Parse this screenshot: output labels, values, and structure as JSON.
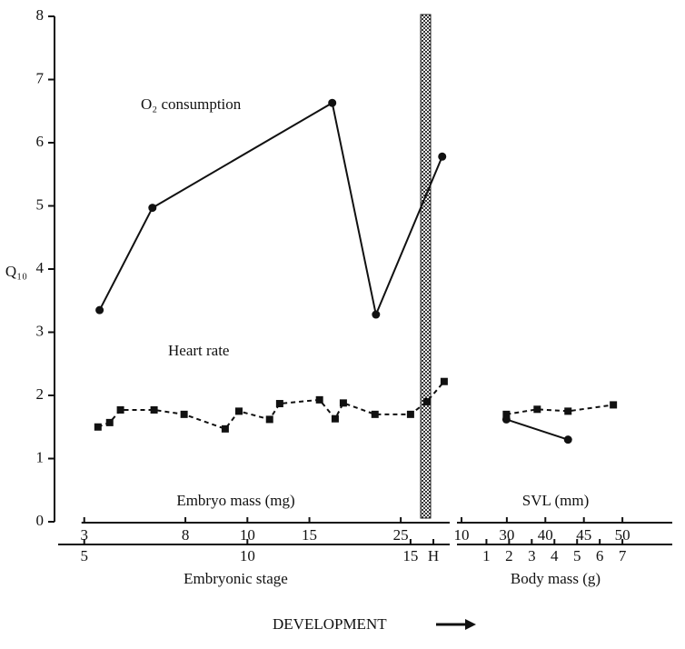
{
  "chart_data": {
    "type": "line",
    "ylabel": "Q₁₀",
    "ylim": [
      0,
      8
    ],
    "yticks": [
      0,
      1,
      2,
      3,
      4,
      5,
      6,
      7,
      8
    ],
    "annotations": [
      "O₂ consumption",
      "Heart rate"
    ],
    "footer": "DEVELOPMENT",
    "panels": [
      {
        "xlim": [
          4.2,
          16.2
        ],
        "axes": [
          {
            "label": "Embryo mass (mg)",
            "ticks": [
              {
                "value": 3,
                "at": 5
              },
              {
                "value": 8,
                "at": 8.1
              },
              {
                "value": 10,
                "at": 10
              },
              {
                "value": 15,
                "at": 11.9
              },
              {
                "value": 25,
                "at": 14.7
              }
            ]
          },
          {
            "label": "Embryonic stage",
            "ticks": [
              5,
              10,
              15,
              {
                "value": 15.7,
                "label": "H"
              }
            ]
          }
        ],
        "series": [
          {
            "name": "O₂ consumption",
            "marker": "circle",
            "dash": false,
            "color": "#111",
            "x": [
              5.47,
              7.09,
              12.6,
              13.94,
              15.97
            ],
            "values": [
              3.35,
              4.97,
              6.63,
              3.28,
              5.78
            ]
          },
          {
            "name": "Heart rate",
            "marker": "square",
            "dash": true,
            "color": "#111",
            "x": [
              5.42,
              5.78,
              6.11,
              7.14,
              8.06,
              9.32,
              9.74,
              10.68,
              10.99,
              12.21,
              12.69,
              12.94,
              13.91,
              15.0,
              15.5,
              16.03
            ],
            "values": [
              1.5,
              1.57,
              1.77,
              1.77,
              1.7,
              1.47,
              1.75,
              1.62,
              1.87,
              1.93,
              1.63,
              1.88,
              1.7,
              1.7,
              1.9,
              2.22
            ]
          }
        ]
      },
      {
        "xlim": [
          -0.3,
          9.2
        ],
        "axes": [
          {
            "label": "SVL (mm)",
            "ticks": [
              {
                "value": 10,
                "at": -0.1
              },
              {
                "value": 30,
                "at": 1.9
              },
              {
                "value": 40,
                "at": 3.6
              },
              {
                "value": 45,
                "at": 5.3
              },
              {
                "value": 50,
                "at": 7.0
              }
            ]
          },
          {
            "label": "Body mass (g)",
            "ticks": [
              1,
              2,
              3,
              4,
              5,
              6,
              7
            ]
          }
        ],
        "series": [
          {
            "name": "Heart rate",
            "marker": "square",
            "dash": true,
            "color": "#111",
            "x": [
              1.88,
              3.24,
              4.6,
              6.6
            ],
            "values": [
              1.7,
              1.78,
              1.75,
              1.85
            ]
          },
          {
            "name": "O₂ consumption",
            "marker": "circle",
            "dash": false,
            "color": "#111",
            "x": [
              1.88,
              4.6
            ],
            "values": [
              1.62,
              1.3
            ]
          }
        ]
      }
    ]
  }
}
